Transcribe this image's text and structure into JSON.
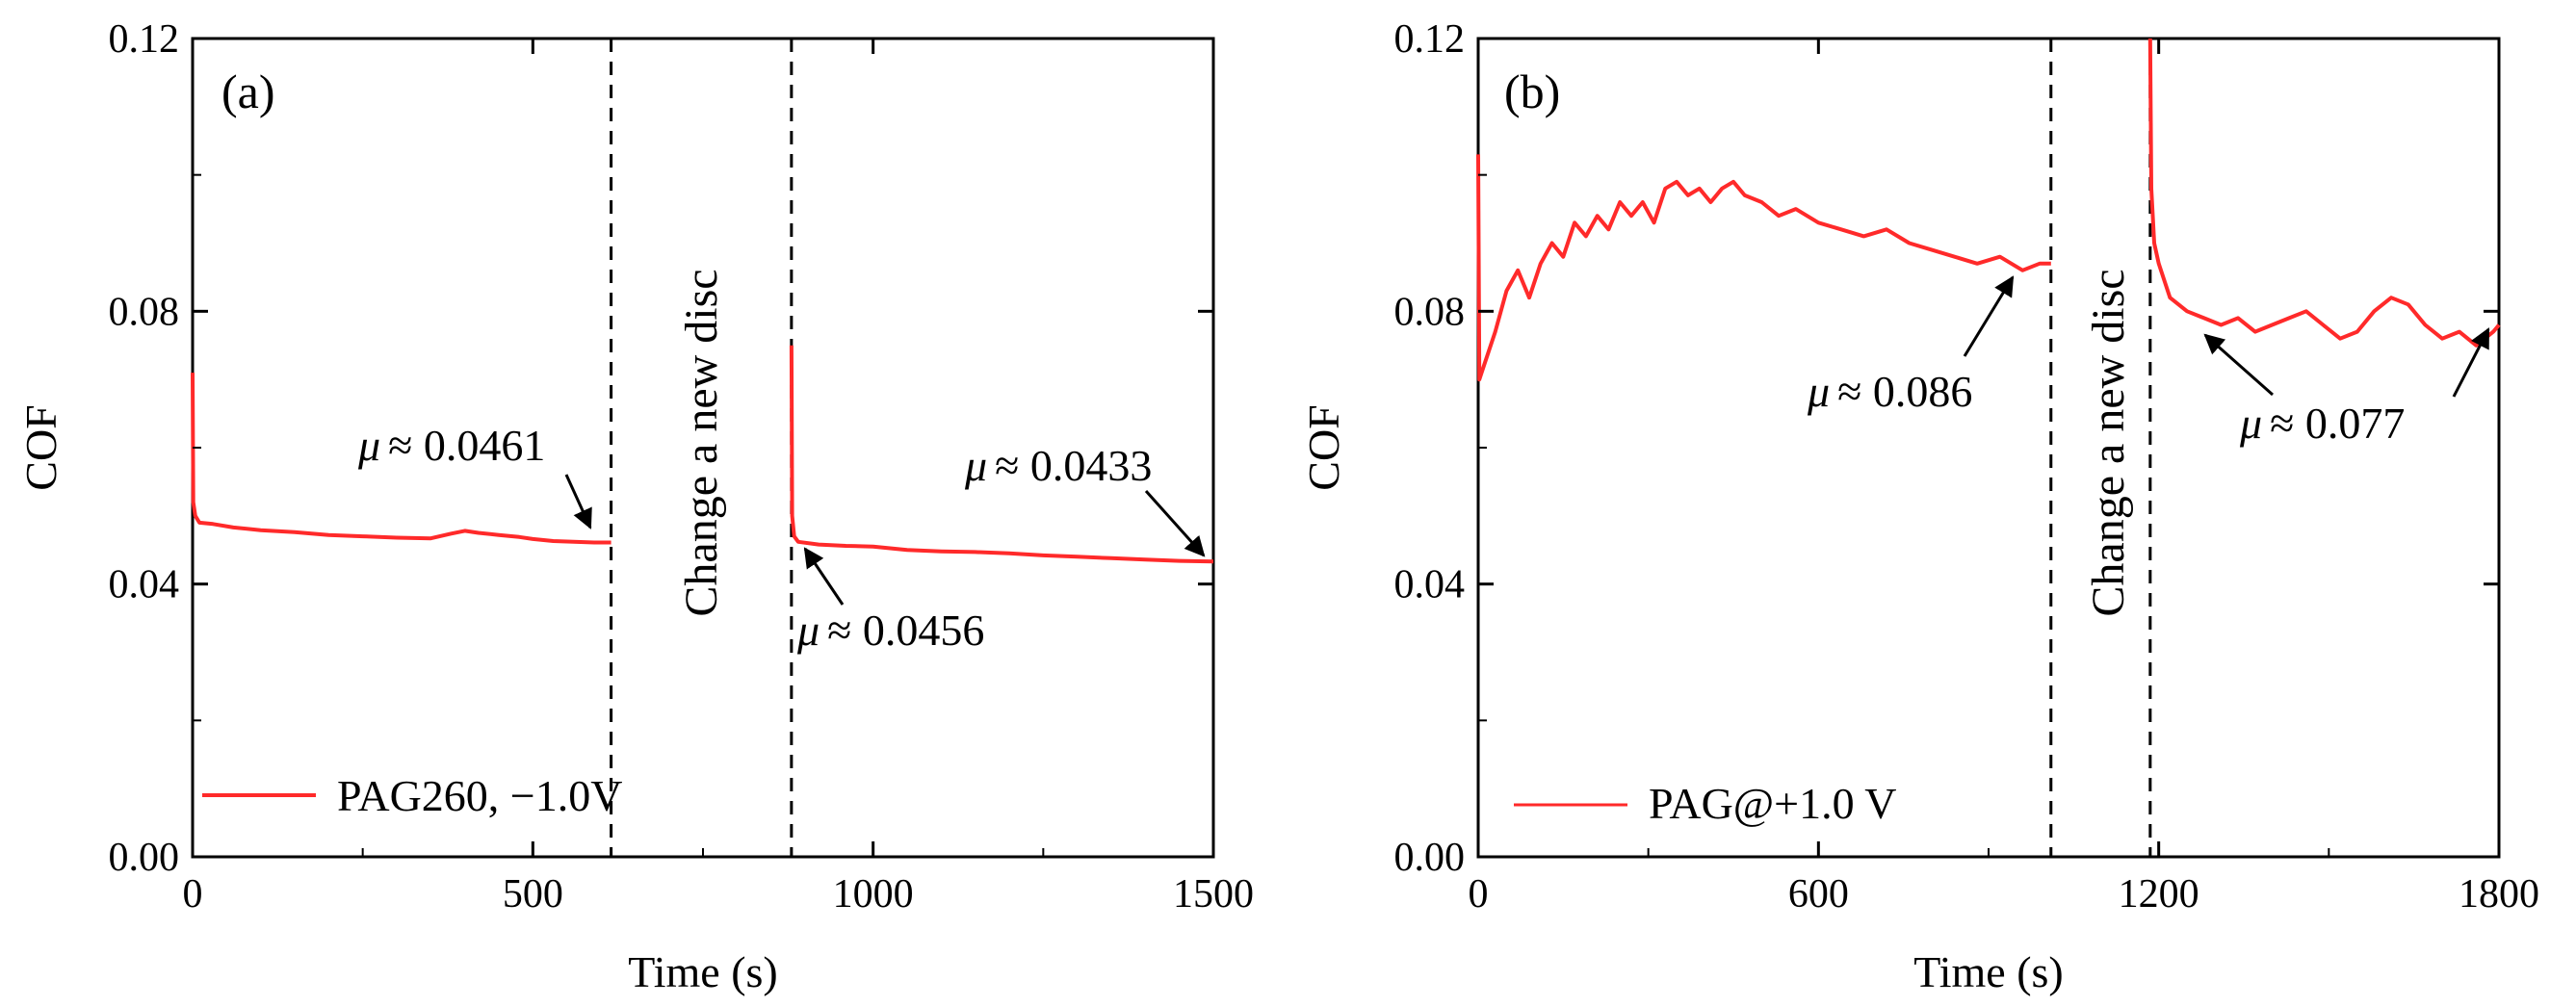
{
  "chart_data": [
    {
      "type": "line",
      "panel_label": "(a)",
      "xlabel": "Time (s)",
      "ylabel": "COF",
      "xlim": [
        0,
        1500
      ],
      "ylim": [
        0,
        0.12
      ],
      "xticks": [
        0,
        500,
        1000,
        1500
      ],
      "xtick_labels": [
        "0",
        "500",
        "1000",
        "1500"
      ],
      "yticks": [
        0,
        0.04,
        0.08,
        0.12
      ],
      "ytick_labels": [
        "0.00",
        "0.04",
        "0.08",
        "0.12"
      ],
      "legend": {
        "label": "PAG260, −1.0V",
        "position": "bottom-left"
      },
      "series_color": "#ff2a2a",
      "divider_x": [
        615,
        880
      ],
      "divider_text": "Change a new disc",
      "series": [
        {
          "name": "PAG260, −1.0V segment 1",
          "x": [
            0,
            1,
            4,
            10,
            30,
            60,
            100,
            150,
            200,
            250,
            300,
            350,
            380,
            400,
            420,
            450,
            480,
            500,
            530,
            560,
            590,
            615
          ],
          "y": [
            0.071,
            0.052,
            0.05,
            0.049,
            0.0488,
            0.0483,
            0.0479,
            0.0476,
            0.0472,
            0.047,
            0.0468,
            0.0467,
            0.0474,
            0.0478,
            0.0475,
            0.0472,
            0.0469,
            0.0466,
            0.0463,
            0.0462,
            0.0461,
            0.0461
          ]
        },
        {
          "name": "PAG260, −1.0V segment 2",
          "x": [
            880,
            881,
            884,
            890,
            920,
            960,
            1000,
            1050,
            1100,
            1150,
            1200,
            1250,
            1300,
            1350,
            1400,
            1450,
            1500
          ],
          "y": [
            0.075,
            0.05,
            0.047,
            0.0462,
            0.0458,
            0.0456,
            0.0455,
            0.045,
            0.0448,
            0.0447,
            0.0445,
            0.0442,
            0.044,
            0.0438,
            0.0436,
            0.0434,
            0.0433
          ]
        }
      ],
      "annotations": [
        {
          "prefix": "μ",
          "value": "≈ 0.0461",
          "arrow_x": 615,
          "arrow_y": 0.0461
        },
        {
          "prefix": "μ",
          "value": "≈ 0.0433",
          "arrow_x": 1500,
          "arrow_y": 0.0433
        },
        {
          "prefix": "μ",
          "value": "≈ 0.0456",
          "arrow_x": 890,
          "arrow_y": 0.0455
        }
      ]
    },
    {
      "type": "line",
      "panel_label": "(b)",
      "xlabel": "Time (s)",
      "ylabel": "COF",
      "xlim": [
        0,
        1800
      ],
      "ylim": [
        0,
        0.12
      ],
      "xticks": [
        0,
        600,
        1200,
        1800
      ],
      "xtick_labels": [
        "0",
        "600",
        "1200",
        "1800"
      ],
      "yticks": [
        0,
        0.04,
        0.08,
        0.12
      ],
      "ytick_labels": [
        "0.00",
        "0.04",
        "0.08",
        "0.12"
      ],
      "legend": {
        "label": "PAG@+1.0 V",
        "position": "bottom-left"
      },
      "series_color": "#ff2a2a",
      "divider_x": [
        1010,
        1185
      ],
      "divider_text": "Change a new disc",
      "series": [
        {
          "name": "PAG@+1.0 V segment 1",
          "x": [
            0,
            2,
            10,
            30,
            50,
            70,
            90,
            110,
            130,
            150,
            170,
            190,
            210,
            230,
            250,
            270,
            290,
            310,
            330,
            350,
            370,
            390,
            410,
            430,
            450,
            470,
            500,
            530,
            560,
            600,
            640,
            680,
            720,
            760,
            800,
            840,
            880,
            920,
            960,
            990,
            1010
          ],
          "y": [
            0.103,
            0.07,
            0.072,
            0.077,
            0.083,
            0.086,
            0.082,
            0.087,
            0.09,
            0.088,
            0.093,
            0.091,
            0.094,
            0.092,
            0.096,
            0.094,
            0.096,
            0.093,
            0.098,
            0.099,
            0.097,
            0.098,
            0.096,
            0.098,
            0.099,
            0.097,
            0.096,
            0.094,
            0.095,
            0.093,
            0.092,
            0.091,
            0.092,
            0.09,
            0.089,
            0.088,
            0.087,
            0.088,
            0.086,
            0.087,
            0.087
          ]
        },
        {
          "name": "PAG@+1.0 V segment 2",
          "x": [
            1185,
            1187,
            1192,
            1200,
            1220,
            1250,
            1280,
            1310,
            1340,
            1370,
            1400,
            1430,
            1460,
            1490,
            1520,
            1550,
            1580,
            1610,
            1640,
            1670,
            1700,
            1730,
            1760,
            1790,
            1800
          ],
          "y": [
            0.12,
            0.098,
            0.09,
            0.087,
            0.082,
            0.08,
            0.079,
            0.078,
            0.079,
            0.077,
            0.078,
            0.079,
            0.08,
            0.078,
            0.076,
            0.077,
            0.08,
            0.082,
            0.081,
            0.078,
            0.076,
            0.077,
            0.075,
            0.077,
            0.078
          ]
        }
      ],
      "annotations": [
        {
          "prefix": "μ",
          "value": "≈ 0.086",
          "arrow_x": 990,
          "arrow_y": 0.087
        },
        {
          "prefix": "μ",
          "value": "≈ 0.077",
          "arrow_x": 1795,
          "arrow_y": 0.078
        }
      ]
    }
  ]
}
